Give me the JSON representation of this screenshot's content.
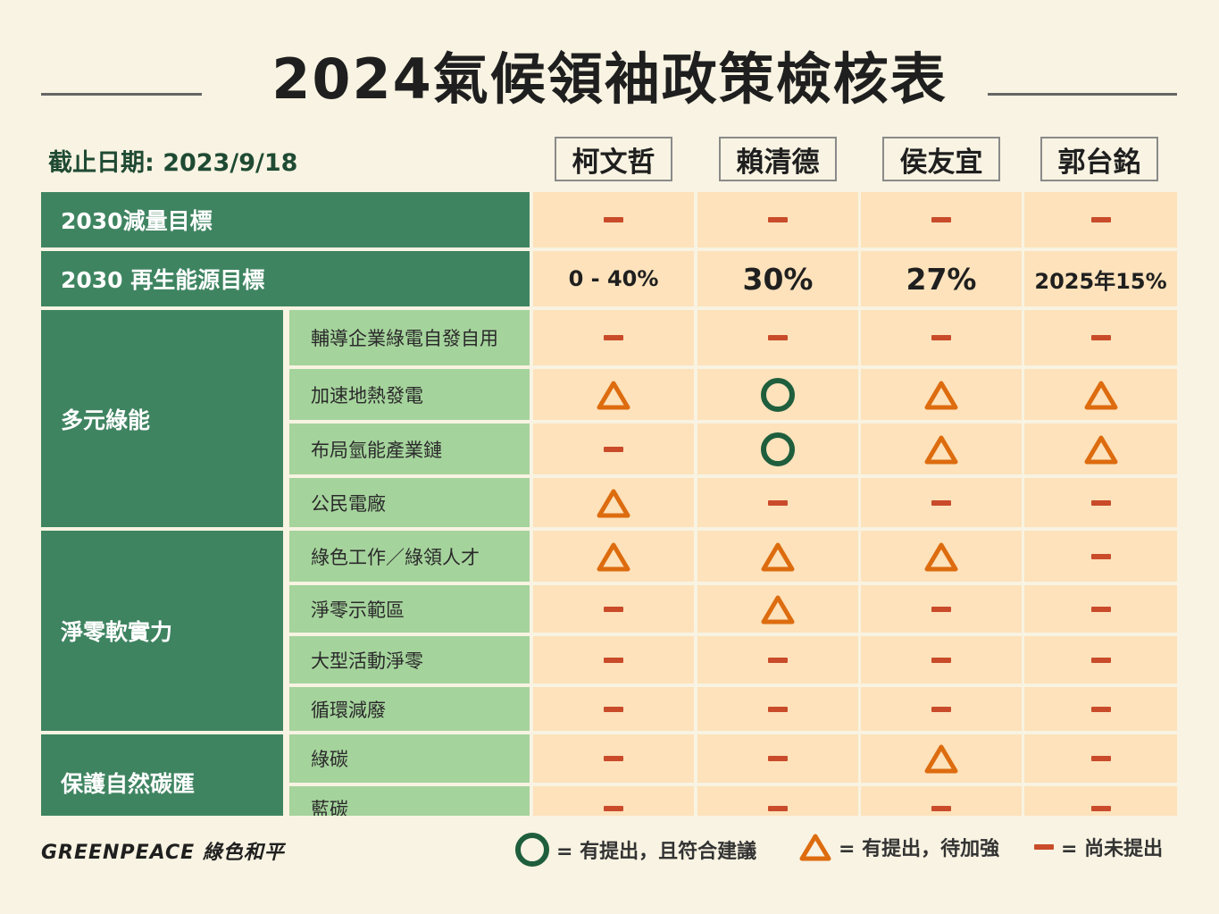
{
  "title": "2024氣候領袖政策檢核表",
  "deadline": "截止日期: 2023/9/18",
  "candidates": [
    "柯文哲",
    "賴清德",
    "侯友宜",
    "郭台銘"
  ],
  "rows": [
    {
      "label": "2030減量目標",
      "values": [
        "-",
        "-",
        "-",
        "-"
      ]
    },
    {
      "label": "2030 再生能源目標",
      "values": [
        "0 - 40%",
        "30%",
        "27%",
        "2025年15%"
      ]
    }
  ],
  "groups": [
    {
      "label": "多元綠能",
      "items": [
        {
          "label": "輔導企業綠電自發自用",
          "values": [
            "-",
            "-",
            "-",
            "-"
          ]
        },
        {
          "label": "加速地熱發電",
          "values": [
            "triangle",
            "circle",
            "triangle",
            "triangle"
          ]
        },
        {
          "label": "布局氫能產業鏈",
          "values": [
            "-",
            "circle",
            "triangle",
            "triangle"
          ]
        },
        {
          "label": "公民電廠",
          "values": [
            "triangle",
            "-",
            "-",
            "-"
          ]
        }
      ]
    },
    {
      "label": "淨零軟實力",
      "items": [
        {
          "label": "綠色工作／綠領人才",
          "values": [
            "triangle",
            "triangle",
            "triangle",
            "-"
          ]
        },
        {
          "label": "淨零示範區",
          "values": [
            "-",
            "triangle",
            "-",
            "-"
          ]
        },
        {
          "label": "大型活動淨零",
          "values": [
            "-",
            "-",
            "-",
            "-"
          ]
        },
        {
          "label": "循環減廢",
          "values": [
            "-",
            "-",
            "-",
            "-"
          ]
        }
      ]
    },
    {
      "label": "保護自然碳匯",
      "items": [
        {
          "label": "綠碳",
          "values": [
            "-",
            "-",
            "triangle",
            "-"
          ]
        },
        {
          "label": "藍碳",
          "values": [
            "-",
            "-",
            "-",
            "-"
          ]
        }
      ]
    }
  ],
  "legend": {
    "circle": "= 有提出，且符合建議",
    "triangle": "= 有提出，待加強",
    "dash": "= 尚未提出"
  },
  "logo": "GREENPEACE 綠色和平",
  "colors": {
    "dark_green": "#3f8461",
    "light_green": "#a5d39c",
    "peach": "#fde2bb",
    "background": "#f8f3e2",
    "circle": "#1f5e3d",
    "triangle": "#dd6c0f",
    "dash": "#c94b2a"
  }
}
